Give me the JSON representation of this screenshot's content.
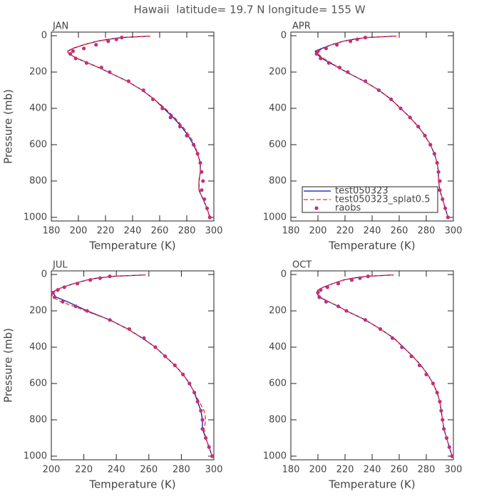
{
  "title": "Hawaii  latitude= 19.7 N longitude= 155 W",
  "chart_data": [
    {
      "type": "line",
      "title": "JAN",
      "xlabel": "Temperature (K)",
      "ylabel": "Pressure (mb)",
      "xlim": [
        180,
        300
      ],
      "ylim": [
        1020,
        -20
      ],
      "xticks": [
        180,
        200,
        220,
        240,
        260,
        280,
        300
      ],
      "yticks": [
        0,
        200,
        400,
        600,
        800,
        1000
      ],
      "series": [
        {
          "color": "#1010a0",
          "style": "solid",
          "x": [
            253,
            232,
            222,
            214,
            204,
            196,
            192,
            193,
            199,
            207,
            215,
            222,
            236,
            247,
            256,
            263,
            270,
            276,
            281,
            285,
            288,
            290,
            290,
            289,
            289,
            292,
            295,
            297
          ],
          "y": [
            2,
            10,
            20,
            30,
            50,
            70,
            85,
            100,
            125,
            150,
            175,
            200,
            250,
            300,
            350,
            400,
            450,
            500,
            550,
            600,
            650,
            700,
            750,
            800,
            850,
            900,
            950,
            1000
          ]
        },
        {
          "color": "#ff2a2a",
          "style": "dashed",
          "x": [
            253,
            232,
            222,
            214,
            204,
            196,
            192,
            193,
            199,
            207,
            215,
            222,
            236,
            247,
            256,
            264,
            271,
            277,
            282,
            286,
            288,
            290,
            290,
            289,
            289,
            292,
            295,
            297
          ],
          "y": [
            2,
            10,
            20,
            30,
            50,
            70,
            85,
            100,
            125,
            150,
            175,
            200,
            250,
            300,
            350,
            400,
            450,
            500,
            550,
            600,
            650,
            700,
            750,
            800,
            850,
            900,
            950,
            1000
          ]
        },
        {
          "color": "#c0307a",
          "style": "dots",
          "x": [
            232,
            228,
            222,
            213,
            204,
            196,
            194,
            198,
            206,
            217,
            223,
            237,
            248,
            255,
            262,
            268,
            275,
            280,
            285,
            288,
            290,
            291,
            292,
            291,
            293,
            295,
            297
          ],
          "y": [
            10,
            20,
            30,
            50,
            70,
            85,
            100,
            125,
            150,
            175,
            200,
            250,
            300,
            350,
            400,
            450,
            500,
            550,
            600,
            650,
            700,
            750,
            800,
            850,
            900,
            950,
            1000
          ]
        }
      ]
    },
    {
      "type": "line",
      "title": "APR",
      "xlabel": "Temperature (K)",
      "xlim": [
        180,
        300
      ],
      "ylim": [
        1020,
        -20
      ],
      "xticks": [
        180,
        200,
        220,
        240,
        260,
        280,
        300
      ],
      "yticks": [
        0,
        200,
        400,
        600,
        800,
        1000
      ],
      "legend": "lower left",
      "series": [
        {
          "name": "test050323",
          "color": "#1010a0",
          "style": "solid",
          "x": [
            258,
            236,
            226,
            219,
            210,
            203,
            198,
            199,
            203,
            209,
            215,
            221,
            234,
            245,
            254,
            261,
            268,
            274,
            279,
            283,
            286,
            288,
            289,
            289,
            290,
            292,
            294,
            296
          ],
          "y": [
            2,
            10,
            20,
            30,
            50,
            70,
            85,
            100,
            125,
            150,
            175,
            200,
            250,
            300,
            350,
            400,
            450,
            500,
            550,
            600,
            650,
            700,
            750,
            800,
            850,
            900,
            950,
            1000
          ]
        },
        {
          "name": "test050323_splat0.5",
          "color": "#ff2a2a",
          "style": "dashed",
          "x": [
            258,
            236,
            226,
            219,
            210,
            204,
            200,
            200,
            204,
            210,
            215,
            221,
            234,
            245,
            254,
            261,
            268,
            274,
            279,
            283,
            286,
            288,
            289,
            289,
            290,
            292,
            294,
            296
          ],
          "y": [
            2,
            10,
            20,
            30,
            50,
            70,
            85,
            100,
            125,
            150,
            175,
            200,
            250,
            300,
            350,
            400,
            450,
            500,
            550,
            600,
            650,
            700,
            750,
            800,
            850,
            900,
            950,
            1000
          ]
        },
        {
          "name": "raobs",
          "color": "#c0307a",
          "style": "dots",
          "x": [
            235,
            229,
            224,
            214,
            206,
            200,
            199,
            202,
            208,
            216,
            222,
            235,
            245,
            254,
            261,
            268,
            274,
            279,
            283,
            286,
            288,
            289,
            290,
            290,
            292,
            294,
            296
          ],
          "y": [
            10,
            20,
            30,
            50,
            70,
            85,
            100,
            125,
            150,
            175,
            200,
            250,
            300,
            350,
            400,
            450,
            500,
            550,
            600,
            650,
            700,
            750,
            800,
            850,
            900,
            950,
            1000
          ]
        }
      ]
    },
    {
      "type": "line",
      "title": "JUL",
      "xlabel": "Temperature (K)",
      "ylabel": "Pressure (mb)",
      "xlim": [
        200,
        300
      ],
      "ylim": [
        1020,
        -20
      ],
      "xticks": [
        200,
        220,
        240,
        260,
        280,
        300
      ],
      "yticks": [
        0,
        200,
        400,
        600,
        800,
        1000
      ],
      "series": [
        {
          "color": "#1010a0",
          "style": "solid",
          "x": [
            258,
            238,
            228,
            222,
            214,
            207,
            203,
            201,
            203,
            210,
            216,
            222,
            236,
            247,
            256,
            264,
            270,
            276,
            281,
            285,
            288,
            290,
            292,
            293,
            293,
            295,
            297,
            299
          ],
          "y": [
            2,
            10,
            20,
            30,
            50,
            70,
            85,
            100,
            125,
            150,
            175,
            200,
            250,
            300,
            350,
            400,
            450,
            500,
            550,
            600,
            650,
            700,
            750,
            800,
            850,
            900,
            950,
            1000
          ]
        },
        {
          "color": "#ff2a2a",
          "style": "dashed",
          "x": [
            258,
            238,
            228,
            222,
            214,
            207,
            203,
            200,
            201,
            206,
            214,
            221,
            236,
            247,
            256,
            264,
            270,
            276,
            281,
            285,
            288,
            291,
            294,
            295,
            294,
            295,
            297,
            299
          ],
          "y": [
            2,
            10,
            20,
            30,
            50,
            70,
            85,
            100,
            125,
            150,
            175,
            200,
            250,
            300,
            350,
            400,
            450,
            500,
            550,
            600,
            650,
            700,
            750,
            800,
            850,
            900,
            950,
            1000
          ]
        },
        {
          "color": "#c0307a",
          "style": "dots",
          "x": [
            236,
            230,
            224,
            216,
            208,
            204,
            201,
            202,
            207,
            215,
            222,
            236,
            248,
            257,
            264,
            270,
            276,
            281,
            285,
            288,
            290,
            292,
            293,
            293,
            295,
            297,
            299
          ],
          "y": [
            10,
            20,
            30,
            50,
            70,
            85,
            100,
            125,
            150,
            175,
            200,
            250,
            300,
            350,
            400,
            450,
            500,
            550,
            600,
            650,
            700,
            750,
            800,
            850,
            900,
            950,
            1000
          ]
        }
      ]
    },
    {
      "type": "line",
      "title": "OCT",
      "xlabel": "Temperature (K)",
      "xlim": [
        180,
        300
      ],
      "ylim": [
        1020,
        -20
      ],
      "xticks": [
        180,
        200,
        220,
        240,
        260,
        280,
        300
      ],
      "yticks": [
        0,
        200,
        400,
        600,
        800,
        1000
      ],
      "series": [
        {
          "color": "#1010a0",
          "style": "solid",
          "x": [
            256,
            236,
            226,
            219,
            211,
            204,
            200,
            199,
            201,
            208,
            215,
            221,
            235,
            246,
            256,
            263,
            270,
            276,
            281,
            285,
            288,
            290,
            291,
            292,
            293,
            295,
            297,
            299
          ],
          "y": [
            2,
            10,
            20,
            30,
            50,
            70,
            85,
            100,
            125,
            150,
            175,
            200,
            250,
            300,
            350,
            400,
            450,
            500,
            550,
            600,
            650,
            700,
            750,
            800,
            850,
            900,
            950,
            1000
          ]
        },
        {
          "color": "#ff2a2a",
          "style": "dashed",
          "x": [
            256,
            236,
            226,
            219,
            211,
            204,
            200,
            200,
            202,
            208,
            215,
            221,
            235,
            246,
            256,
            263,
            270,
            276,
            281,
            285,
            288,
            290,
            291,
            292,
            293,
            295,
            297,
            299
          ],
          "y": [
            2,
            10,
            20,
            30,
            50,
            70,
            85,
            100,
            125,
            150,
            175,
            200,
            250,
            300,
            350,
            400,
            450,
            500,
            550,
            600,
            650,
            700,
            750,
            800,
            850,
            900,
            950,
            1000
          ]
        },
        {
          "color": "#c0307a",
          "style": "dots",
          "x": [
            237,
            231,
            225,
            215,
            207,
            202,
            200,
            201,
            206,
            215,
            221,
            235,
            246,
            255,
            262,
            269,
            275,
            280,
            285,
            288,
            290,
            291,
            292,
            293,
            295,
            297,
            299
          ],
          "y": [
            10,
            20,
            30,
            50,
            70,
            85,
            100,
            125,
            150,
            175,
            200,
            250,
            300,
            350,
            400,
            450,
            500,
            550,
            600,
            650,
            700,
            750,
            800,
            850,
            900,
            950,
            1000
          ]
        }
      ]
    }
  ]
}
